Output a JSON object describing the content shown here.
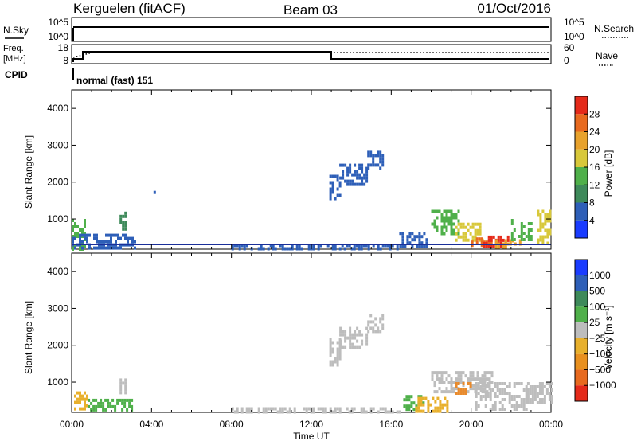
{
  "header": {
    "radar": "Kerguelen (fitACF)",
    "beam": "Beam 03",
    "date": "01/Oct/2016"
  },
  "top_panels": {
    "nsky_label": "N.Sky",
    "nsearch_label": "N.Search",
    "nsky_ticks": [
      "10^5",
      "10^0"
    ],
    "nsearch_ticks": [
      "10^5",
      "10^0"
    ],
    "freq_label_1": "Freq.",
    "freq_label_2": "[MHz]",
    "freq_ticks": [
      "18",
      "8"
    ],
    "nave_label": "Nave",
    "nave_ticks": [
      "60",
      "0"
    ],
    "cpid_label": "CPID",
    "cpid_value": "normal (fast) 151"
  },
  "x_axis": {
    "label": "Time UT",
    "ticks": [
      "00:00",
      "04:00",
      "08:00",
      "12:00",
      "16:00",
      "20:00",
      "00:00"
    ]
  },
  "chart_data": [
    {
      "type": "heatmap",
      "panel": "power",
      "ylabel": "Slant Range [km]",
      "yticks": [
        "1000",
        "2000",
        "3000",
        "4000"
      ],
      "ylim": [
        180,
        4500
      ],
      "colorbar_label": "Power [dB]",
      "colorbar_ticks": [
        "4",
        "8",
        "12",
        "16",
        "20",
        "24",
        "28"
      ],
      "colorbar_colors": [
        "#1a3cff",
        "#2e5fb8",
        "#3e8a5a",
        "#4fb04a",
        "#d8c83a",
        "#e8a22c",
        "#e86a1f",
        "#e52a1a"
      ],
      "clim": [
        0,
        32
      ],
      "patches": [
        {
          "t0": 0.0,
          "t1": 0.6,
          "r0": 200,
          "r1": 1000,
          "power": 14
        },
        {
          "t0": 0.0,
          "t1": 3.2,
          "r0": 200,
          "r1": 600,
          "power": 6
        },
        {
          "t0": 2.4,
          "t1": 2.7,
          "r0": 700,
          "r1": 1200,
          "power": 8
        },
        {
          "t0": 4.1,
          "t1": 4.2,
          "r0": 1750,
          "r1": 1850,
          "power": 4
        },
        {
          "t0": 12.9,
          "t1": 13.4,
          "r0": 1500,
          "r1": 2200,
          "power": 6
        },
        {
          "t0": 13.4,
          "t1": 14.8,
          "r0": 1900,
          "r1": 2500,
          "power": 5
        },
        {
          "t0": 14.8,
          "t1": 15.6,
          "r0": 2400,
          "r1": 2850,
          "power": 5
        },
        {
          "t0": 16.4,
          "t1": 17.8,
          "r0": 300,
          "r1": 650,
          "power": 6
        },
        {
          "t0": 18.0,
          "t1": 19.4,
          "r0": 600,
          "r1": 1250,
          "power": 12
        },
        {
          "t0": 19.2,
          "t1": 20.6,
          "r0": 450,
          "r1": 900,
          "power": 16
        },
        {
          "t0": 20.0,
          "t1": 21.0,
          "r0": 250,
          "r1": 500,
          "power": 26
        },
        {
          "t0": 20.6,
          "t1": 21.8,
          "r0": 250,
          "r1": 550,
          "power": 30
        },
        {
          "t0": 21.2,
          "t1": 22.4,
          "r0": 200,
          "r1": 450,
          "power": 22
        },
        {
          "t0": 22.0,
          "t1": 23.0,
          "r0": 400,
          "r1": 1000,
          "power": 12
        },
        {
          "t0": 23.3,
          "t1": 24.0,
          "r0": 300,
          "r1": 1250,
          "power": 18
        },
        {
          "t0": 8.0,
          "t1": 16.4,
          "r0": 200,
          "r1": 320,
          "power": 5
        }
      ]
    },
    {
      "type": "heatmap",
      "panel": "velocity",
      "ylabel": "Slant Range [km]",
      "yticks": [
        "1000",
        "2000",
        "3000",
        "4000"
      ],
      "ylim": [
        180,
        4500
      ],
      "colorbar_label": "Velocity [m s⁻¹]",
      "colorbar_ticks": [
        "1000",
        "500",
        "100",
        "25",
        "−25",
        "−100",
        "−500",
        "−1000"
      ],
      "colorbar_colors": [
        "#1a3cff",
        "#2e5fb8",
        "#3e8a5a",
        "#4fb04a",
        "#bdbdbd",
        "#e8b02c",
        "#e8901f",
        "#e86a1f",
        "#e52a1a"
      ],
      "patches": [
        {
          "t0": 0.0,
          "t1": 0.8,
          "r0": 250,
          "r1": 750,
          "color": "#e8b02c"
        },
        {
          "t0": 0.8,
          "t1": 3.0,
          "r0": 250,
          "r1": 550,
          "color": "#4fb04a"
        },
        {
          "t0": 2.4,
          "t1": 2.7,
          "r0": 700,
          "r1": 1100,
          "color": "#bdbdbd"
        },
        {
          "t0": 12.9,
          "t1": 13.4,
          "r0": 1500,
          "r1": 2200,
          "color": "#bdbdbd"
        },
        {
          "t0": 13.4,
          "t1": 14.8,
          "r0": 1900,
          "r1": 2500,
          "color": "#bdbdbd"
        },
        {
          "t0": 14.8,
          "t1": 15.6,
          "r0": 2400,
          "r1": 2850,
          "color": "#bdbdbd"
        },
        {
          "t0": 16.6,
          "t1": 17.6,
          "r0": 300,
          "r1": 650,
          "color": "#4fb04a"
        },
        {
          "t0": 17.2,
          "t1": 18.8,
          "r0": 250,
          "r1": 600,
          "color": "#e8b02c"
        },
        {
          "t0": 18.0,
          "t1": 21.0,
          "r0": 700,
          "r1": 1300,
          "color": "#bdbdbd"
        },
        {
          "t0": 19.2,
          "t1": 20.0,
          "r0": 700,
          "r1": 1000,
          "color": "#e88a2c"
        },
        {
          "t0": 20.2,
          "t1": 22.8,
          "r0": 250,
          "r1": 1000,
          "color": "#bdbdbd"
        },
        {
          "t0": 22.8,
          "t1": 24.0,
          "r0": 400,
          "r1": 1000,
          "color": "#bdbdbd"
        },
        {
          "t0": 8.0,
          "t1": 16.4,
          "r0": 200,
          "r1": 320,
          "color": "#bdbdbd"
        }
      ]
    }
  ]
}
